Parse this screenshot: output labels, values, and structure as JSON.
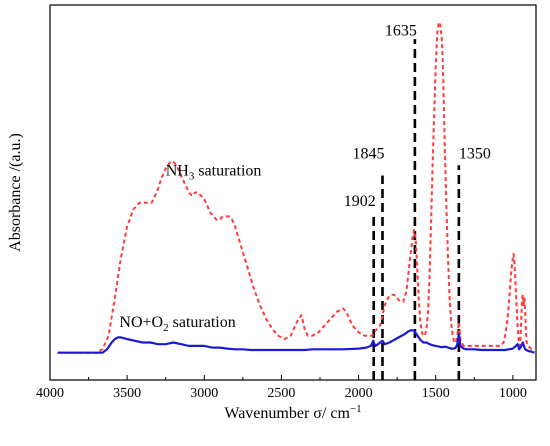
{
  "chart_data": {
    "type": "line",
    "title": "",
    "xlabel": "Wavenumber σ/ cm",
    "xlabel_sup": "−1",
    "ylabel": "Absorbance /(a.u.)",
    "xlim": [
      4000,
      850
    ],
    "x_reversed": true,
    "ylim": [
      -0.08,
      1.02
    ],
    "y_ticks_shown": false,
    "grid": false,
    "legend": "none",
    "x_ticks": [
      4000,
      3500,
      3000,
      2500,
      2000,
      1500,
      1000
    ],
    "x_tick_labels": [
      "4000",
      "3500",
      "3000",
      "2500",
      "2000",
      "1500",
      "1000"
    ],
    "series": [
      {
        "id": "nh3",
        "color": "#ff3b3b",
        "dashed": true,
        "x": [
          3950,
          3800,
          3700,
          3660,
          3620,
          3580,
          3540,
          3500,
          3460,
          3420,
          3380,
          3340,
          3300,
          3280,
          3250,
          3220,
          3200,
          3180,
          3150,
          3120,
          3100,
          3080,
          3060,
          3040,
          3020,
          3000,
          2980,
          2960,
          2940,
          2920,
          2900,
          2880,
          2860,
          2840,
          2820,
          2800,
          2780,
          2760,
          2720,
          2680,
          2640,
          2600,
          2560,
          2520,
          2480,
          2440,
          2400,
          2370,
          2350,
          2330,
          2300,
          2260,
          2220,
          2180,
          2140,
          2100,
          2080,
          2060,
          2040,
          2000,
          1960,
          1930,
          1910,
          1900,
          1880,
          1860,
          1845,
          1830,
          1810,
          1790,
          1770,
          1750,
          1730,
          1710,
          1690,
          1675,
          1660,
          1650,
          1640,
          1630,
          1620,
          1610,
          1600,
          1590,
          1580,
          1570,
          1560,
          1550,
          1540,
          1530,
          1520,
          1510,
          1500,
          1490,
          1480,
          1470,
          1460,
          1455,
          1450,
          1445,
          1440,
          1430,
          1420,
          1410,
          1400,
          1390,
          1380,
          1370,
          1360,
          1350,
          1340,
          1320,
          1300,
          1280,
          1250,
          1200,
          1150,
          1120,
          1100,
          1080,
          1060,
          1050,
          1040,
          1030,
          1020,
          1010,
          1000,
          995,
          990,
          980,
          970,
          960,
          955,
          950,
          945,
          940,
          935,
          930,
          925,
          920,
          915,
          910,
          900,
          880,
          860
        ],
        "y": [
          0.0,
          0.0,
          0.0,
          0.01,
          0.05,
          0.16,
          0.28,
          0.37,
          0.42,
          0.44,
          0.44,
          0.44,
          0.48,
          0.51,
          0.54,
          0.56,
          0.56,
          0.55,
          0.52,
          0.49,
          0.47,
          0.46,
          0.47,
          0.47,
          0.46,
          0.45,
          0.43,
          0.41,
          0.4,
          0.39,
          0.39,
          0.4,
          0.4,
          0.4,
          0.39,
          0.37,
          0.34,
          0.31,
          0.25,
          0.19,
          0.14,
          0.1,
          0.07,
          0.05,
          0.04,
          0.05,
          0.09,
          0.11,
          0.07,
          0.05,
          0.05,
          0.06,
          0.08,
          0.1,
          0.12,
          0.13,
          0.12,
          0.1,
          0.08,
          0.06,
          0.05,
          0.05,
          0.05,
          0.06,
          0.07,
          0.08,
          0.11,
          0.14,
          0.16,
          0.17,
          0.17,
          0.16,
          0.15,
          0.15,
          0.18,
          0.24,
          0.3,
          0.34,
          0.36,
          0.33,
          0.25,
          0.16,
          0.09,
          0.06,
          0.05,
          0.05,
          0.07,
          0.12,
          0.22,
          0.38,
          0.55,
          0.7,
          0.84,
          0.94,
          0.97,
          0.96,
          0.92,
          0.86,
          0.78,
          0.68,
          0.58,
          0.42,
          0.27,
          0.16,
          0.09,
          0.05,
          0.03,
          0.03,
          0.05,
          0.09,
          0.04,
          0.02,
          0.02,
          0.02,
          0.02,
          0.02,
          0.02,
          0.02,
          0.02,
          0.02,
          0.03,
          0.05,
          0.08,
          0.12,
          0.18,
          0.24,
          0.28,
          0.29,
          0.27,
          0.18,
          0.08,
          0.03,
          0.02,
          0.05,
          0.1,
          0.16,
          0.17,
          0.14,
          0.16,
          0.12,
          0.06,
          0.03,
          0.02,
          0.01,
          0.01
        ]
      },
      {
        "id": "no_o2",
        "color": "#1a1ad6",
        "dashed": false,
        "x": [
          3950,
          3800,
          3700,
          3660,
          3630,
          3600,
          3580,
          3560,
          3540,
          3500,
          3450,
          3400,
          3350,
          3300,
          3250,
          3200,
          3150,
          3100,
          3050,
          3000,
          2950,
          2900,
          2850,
          2800,
          2750,
          2700,
          2650,
          2600,
          2550,
          2500,
          2450,
          2400,
          2350,
          2300,
          2250,
          2200,
          2100,
          2000,
          1950,
          1920,
          1910,
          1905,
          1900,
          1890,
          1875,
          1860,
          1845,
          1830,
          1800,
          1780,
          1760,
          1740,
          1720,
          1700,
          1680,
          1660,
          1640,
          1625,
          1610,
          1600,
          1580,
          1560,
          1540,
          1520,
          1500,
          1480,
          1460,
          1440,
          1420,
          1400,
          1380,
          1370,
          1360,
          1355,
          1350,
          1345,
          1340,
          1320,
          1300,
          1250,
          1200,
          1150,
          1100,
          1050,
          1000,
          980,
          970,
          965,
          960,
          950,
          940,
          935,
          930,
          920,
          900,
          880,
          860
        ],
        "y": [
          0.0,
          0.0,
          0.0,
          0.0,
          0.01,
          0.03,
          0.04,
          0.045,
          0.045,
          0.04,
          0.035,
          0.03,
          0.03,
          0.025,
          0.025,
          0.03,
          0.025,
          0.02,
          0.02,
          0.02,
          0.015,
          0.015,
          0.012,
          0.01,
          0.01,
          0.008,
          0.008,
          0.008,
          0.008,
          0.008,
          0.008,
          0.008,
          0.008,
          0.01,
          0.01,
          0.01,
          0.01,
          0.012,
          0.015,
          0.02,
          0.03,
          0.035,
          0.028,
          0.02,
          0.025,
          0.03,
          0.035,
          0.025,
          0.03,
          0.035,
          0.04,
          0.045,
          0.05,
          0.055,
          0.062,
          0.066,
          0.065,
          0.055,
          0.045,
          0.038,
          0.03,
          0.03,
          0.025,
          0.022,
          0.02,
          0.018,
          0.016,
          0.018,
          0.015,
          0.012,
          0.012,
          0.015,
          0.025,
          0.04,
          0.055,
          0.04,
          0.02,
          0.012,
          0.01,
          0.01,
          0.008,
          0.008,
          0.008,
          0.008,
          0.012,
          0.02,
          0.025,
          0.02,
          0.01,
          0.015,
          0.025,
          0.03,
          0.022,
          0.01,
          0.005,
          0.003,
          0.0
        ]
      }
    ],
    "reference_lines": [
      {
        "x": 1902,
        "label": "1902",
        "y_top": 0.41,
        "label_y": 0.43
      },
      {
        "x": 1845,
        "label": "1845",
        "y_top": 0.52,
        "label_y": 0.57
      },
      {
        "x": 1635,
        "label": "1635",
        "y_top": 0.92,
        "label_y": 0.93
      },
      {
        "x": 1350,
        "label": "1350",
        "y_top": 0.55,
        "label_y": 0.57
      }
    ],
    "series_labels": [
      {
        "series": "nh3",
        "text_main": "NH",
        "sub": "3",
        "text_tail": " saturation",
        "x": 3250,
        "y": 0.52
      },
      {
        "series": "no_o2",
        "text_main": "NO+O",
        "sub": "2",
        "text_tail": " saturation",
        "x": 3550,
        "y": 0.075
      }
    ]
  }
}
